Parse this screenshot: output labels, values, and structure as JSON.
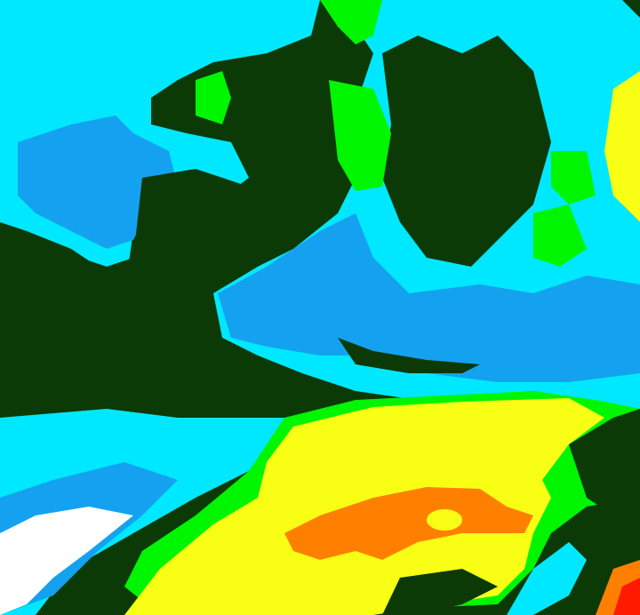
{
  "image": {
    "palette": {
      "dark_green": "#0b3a06",
      "cyan": "#00e8ff",
      "blue": "#14a2f0",
      "green": "#00f500",
      "yellow": "#f8ff14",
      "orange": "#ff8000",
      "red": "#ff1a00",
      "white": "#ffffff"
    }
  }
}
